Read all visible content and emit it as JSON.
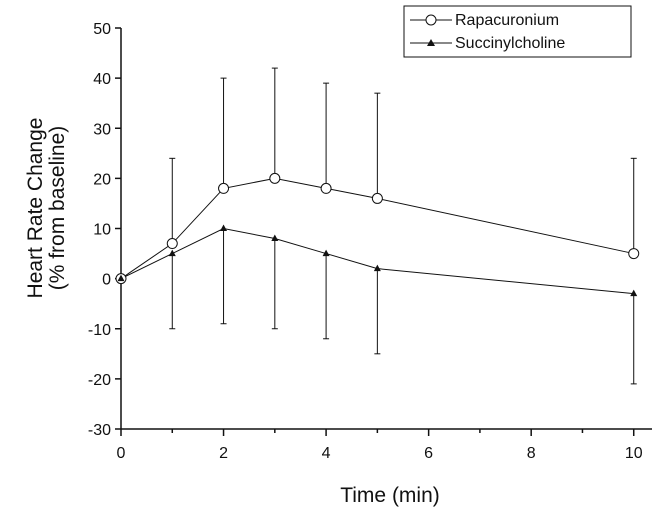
{
  "chart_data": {
    "type": "line",
    "xlabel": "Time (min)",
    "ylabel_lines": [
      "Heart Rate Change",
      "(% from baseline)"
    ],
    "xlim": [
      0,
      11
    ],
    "ylim": [
      -30,
      50
    ],
    "xticks": [
      0,
      2,
      4,
      6,
      8,
      10
    ],
    "yticks": [
      -30,
      -20,
      -10,
      0,
      10,
      20,
      30,
      40,
      50
    ],
    "grid": false,
    "legend_position": "top-right",
    "series": [
      {
        "name": "Rapacuronium",
        "marker": "open-circle",
        "x": [
          0,
          1,
          2,
          3,
          4,
          5,
          10
        ],
        "y": [
          0,
          7,
          18,
          20,
          18,
          16,
          5
        ],
        "err_upper": [
          0,
          24,
          40,
          42,
          39,
          37,
          24
        ]
      },
      {
        "name": "Succinylcholine",
        "marker": "filled-triangle",
        "x": [
          0,
          1,
          2,
          3,
          4,
          5,
          10
        ],
        "y": [
          0,
          5,
          10,
          8,
          5,
          2,
          -3
        ],
        "err_lower": [
          0,
          -10,
          -9,
          -10,
          -12,
          -15,
          -21
        ]
      }
    ]
  }
}
